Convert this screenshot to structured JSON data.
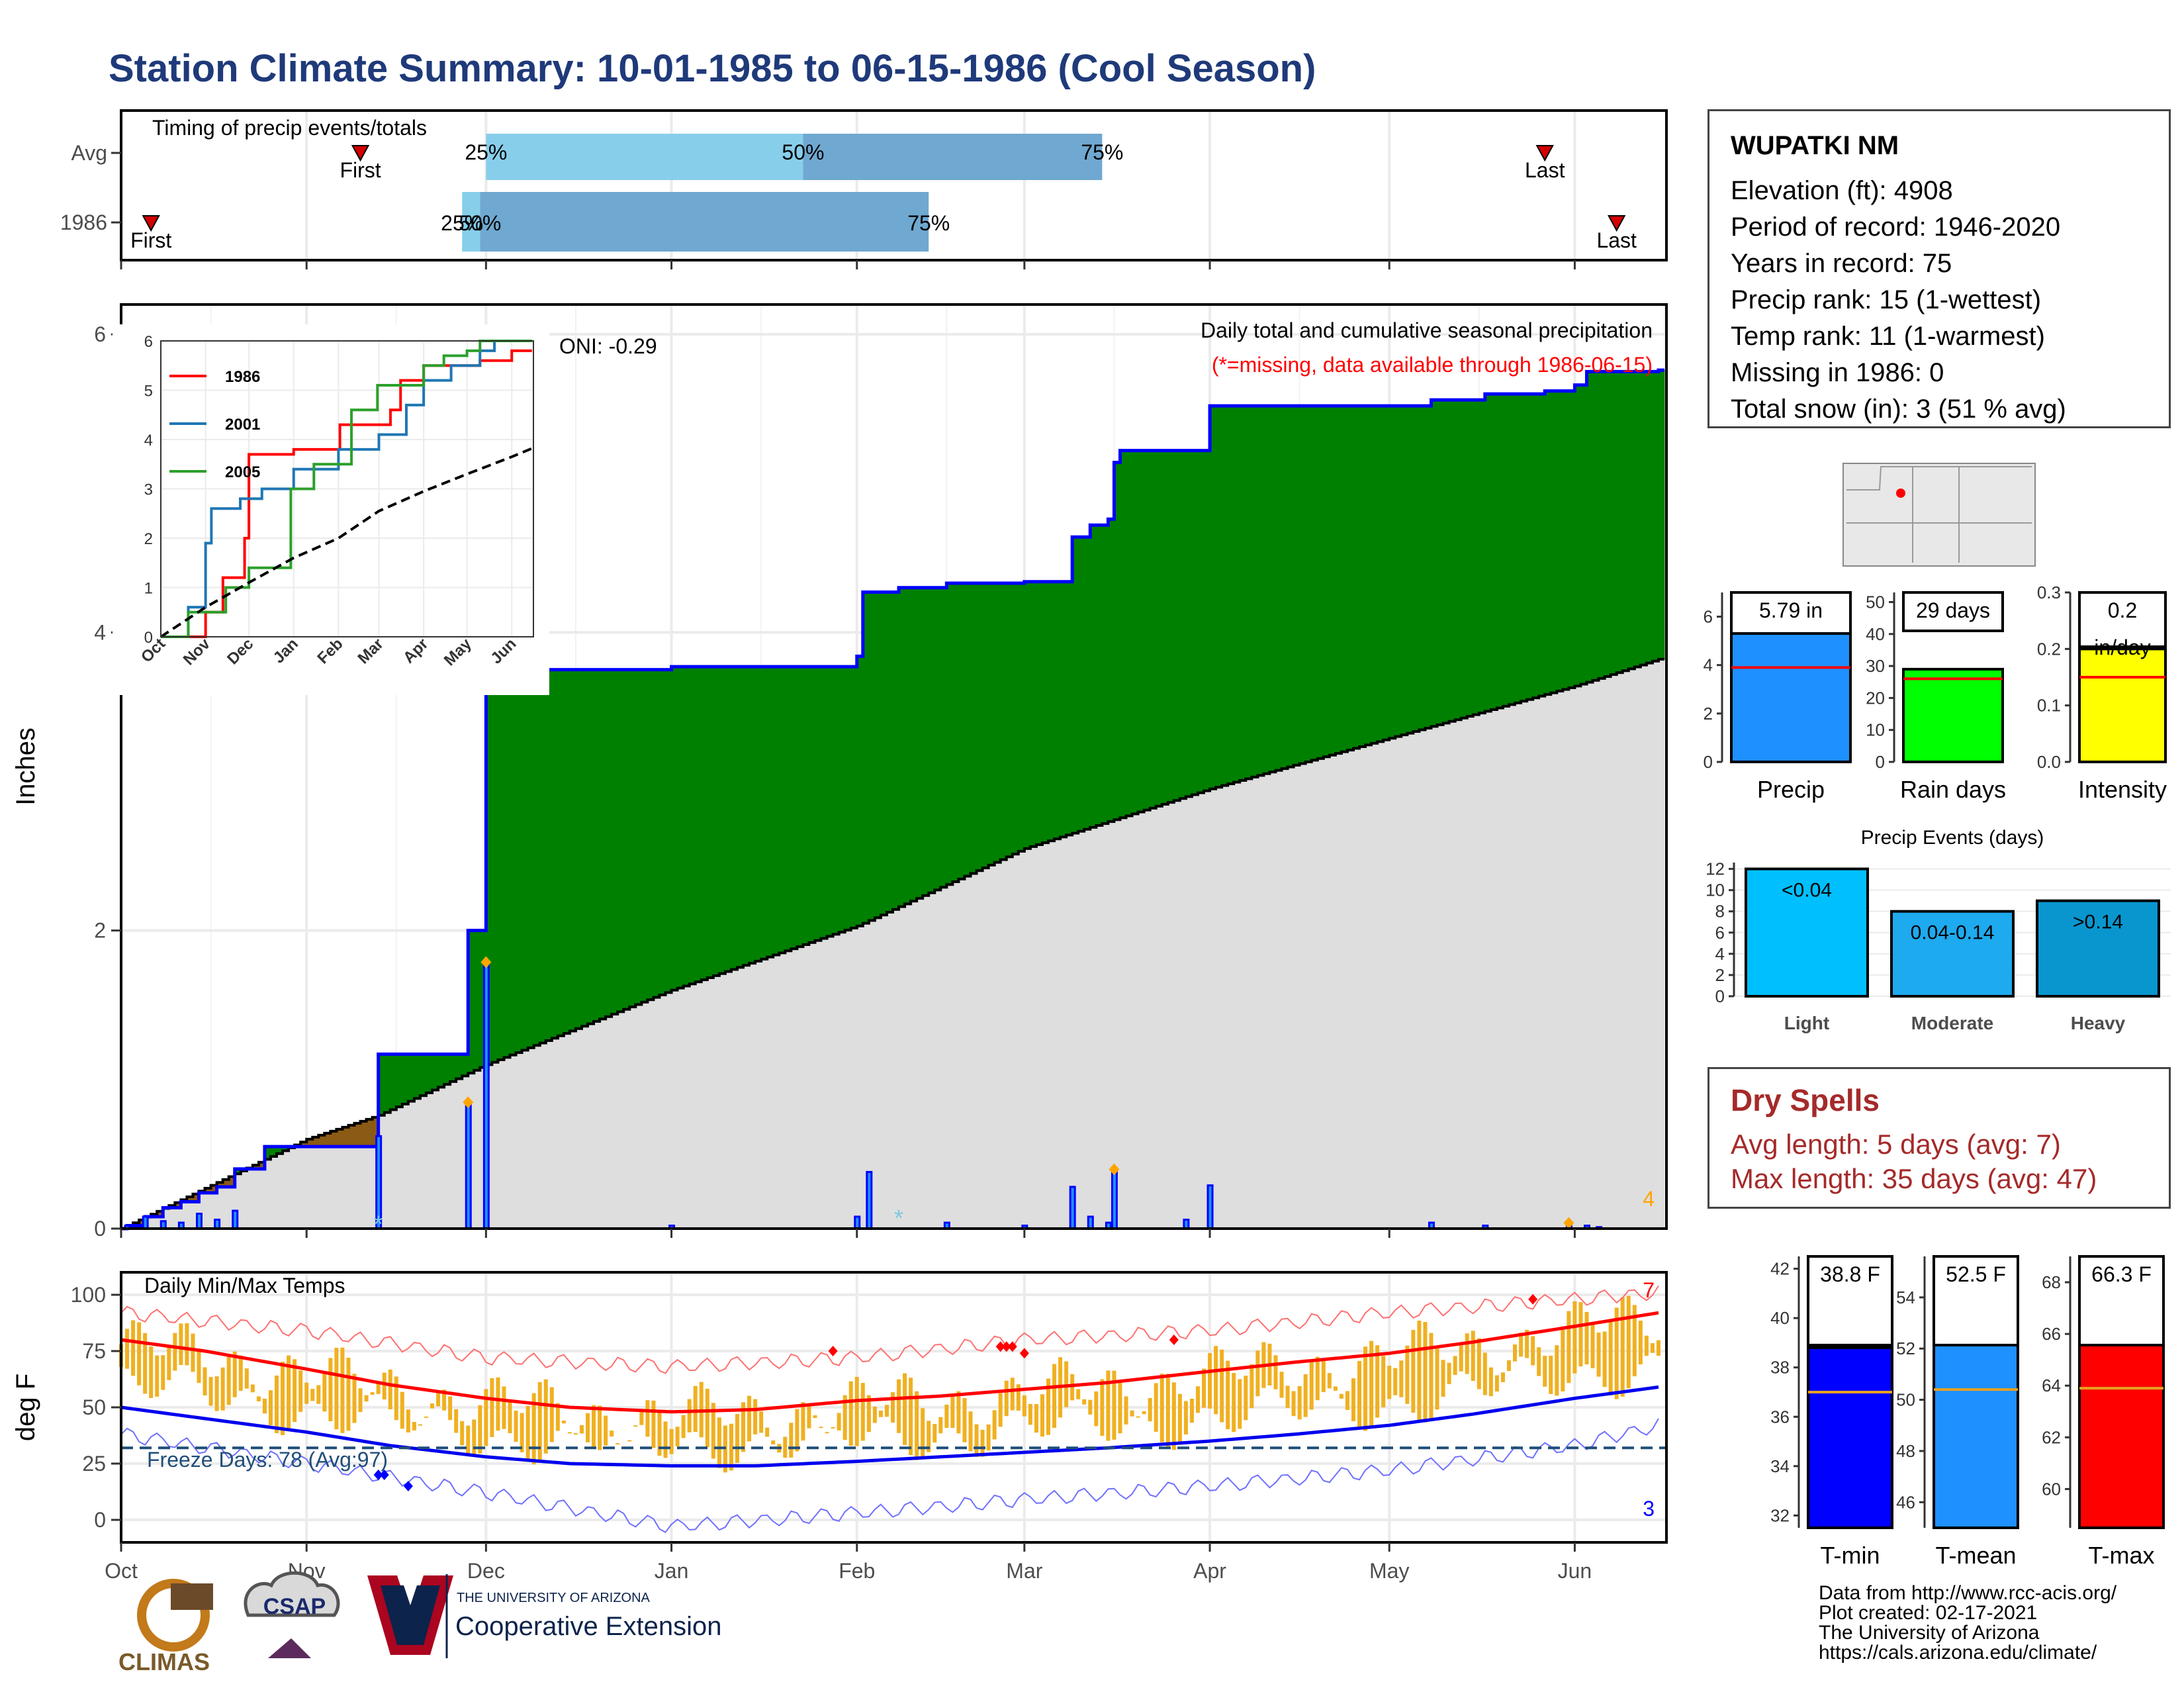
{
  "title": "Station Climate Summary: 10-01-1985 to 06-15-1986 (Cool Season)",
  "station": {
    "name": "WUPATKI NM",
    "lines": [
      "Elevation (ft): 4908",
      "Period of record: 1946-2020",
      "Years in record: 75",
      "Precip rank: 15 (1-wettest)",
      "Temp rank: 11 (1-warmest)",
      "Missing in 1986: 0",
      "Total snow (in): 3 (51 % avg)"
    ]
  },
  "dry_spells": {
    "title": "Dry Spells",
    "avg_length": "Avg length: 5 days (avg: 7)",
    "max_length": "Max length: 35 days (avg: 47)"
  },
  "credits": [
    "Data from http://www.rcc-acis.org/",
    "Plot created: 02-17-2021",
    "The University of Arizona",
    "https://cals.arizona.edu/climate/"
  ],
  "logos": {
    "climas": "CLIMAS",
    "csap": "CSAP",
    "ua_small": "THE UNIVERSITY OF ARIZONA",
    "ua_big": "Cooperative Extension"
  },
  "colors": {
    "green_surplus": "#008000",
    "brown_deficit": "#8b5a14",
    "normal_gray": "#dedede",
    "blue_line": "#0000ff",
    "bar_blue": "#1e90ff",
    "tmax_red": "#ff0000",
    "tmin_blue": "#0000ee",
    "range_orange": "#f0b021",
    "timing_light": "#87ceeb",
    "timing_dark": "#6fa8d0"
  },
  "chart_data": [
    {
      "id": "timing",
      "type": "bar",
      "title": "Timing of precip events/totals",
      "rows": [
        "Avg",
        "1986"
      ],
      "avg": {
        "first": "Nov 10",
        "p25": "Dec 1",
        "p50": "Jan 23",
        "p75": "Mar 14",
        "last": "May 27"
      },
      "y1986": {
        "first": "Oct 6",
        "p25": "Nov 27",
        "p50": "Nov 30",
        "p75": "Feb 13",
        "last": "Jun 8"
      },
      "labels": {
        "first": "First",
        "last": "Last",
        "p25": "25%",
        "p50": "50%",
        "p75": "75%"
      }
    },
    {
      "id": "precip",
      "type": "area",
      "title": "Daily total and cumulative seasonal precipitation",
      "note": "(*=missing, data available through 1986-06-15)",
      "oni": "ONI: -0.29",
      "ylabel": "Inches",
      "ylim": [
        0,
        6.2
      ],
      "yticks": [
        0,
        2,
        4,
        6
      ],
      "corner_count": "4",
      "cumulative_1986": [
        [
          "Oct 1",
          0.0
        ],
        [
          "Oct 2",
          0.02
        ],
        [
          "Oct 5",
          0.08
        ],
        [
          "Oct 8",
          0.14
        ],
        [
          "Oct 11",
          0.18
        ],
        [
          "Oct 14",
          0.24
        ],
        [
          "Oct 17",
          0.28
        ],
        [
          "Oct 20",
          0.4
        ],
        [
          "Oct 25",
          0.55
        ],
        [
          "Nov 12",
          0.55
        ],
        [
          "Nov 13",
          1.17
        ],
        [
          "Nov 27",
          1.17
        ],
        [
          "Nov 28",
          2.0
        ],
        [
          "Nov 30",
          2.0
        ],
        [
          "Dec 1",
          3.63
        ],
        [
          "Dec 4",
          3.63
        ],
        [
          "Dec 5",
          3.75
        ],
        [
          "Dec 31",
          3.75
        ],
        [
          "Jan 1",
          3.77
        ],
        [
          "Jan 31",
          3.77
        ],
        [
          "Feb 1",
          3.84
        ],
        [
          "Feb 2",
          4.27
        ],
        [
          "Feb 8",
          4.3
        ],
        [
          "Feb 16",
          4.33
        ],
        [
          "Feb 28",
          4.33
        ],
        [
          "Mar 1",
          4.34
        ],
        [
          "Mar 8",
          4.34
        ],
        [
          "Mar 9",
          4.64
        ],
        [
          "Mar 12",
          4.72
        ],
        [
          "Mar 15",
          4.76
        ],
        [
          "Mar 16",
          5.14
        ],
        [
          "Mar 17",
          5.22
        ],
        [
          "Mar 31",
          5.22
        ],
        [
          "Apr 1",
          5.52
        ],
        [
          "May 7",
          5.52
        ],
        [
          "May 8",
          5.56
        ],
        [
          "May 17",
          5.6
        ],
        [
          "May 27",
          5.62
        ],
        [
          "Jun 1",
          5.66
        ],
        [
          "Jun 3",
          5.75
        ],
        [
          "Jun 15",
          5.76
        ]
      ],
      "normal_cumulative": [
        [
          "Oct 1",
          0.0
        ],
        [
          "Nov 1",
          0.6
        ],
        [
          "Nov 13",
          0.76
        ],
        [
          "Dec 1",
          1.1
        ],
        [
          "Jan 1",
          1.6
        ],
        [
          "Feb 1",
          2.03
        ],
        [
          "Mar 1",
          2.55
        ],
        [
          "Apr 1",
          2.95
        ],
        [
          "May 1",
          3.29
        ],
        [
          "Jun 1",
          3.64
        ],
        [
          "Jun 15",
          3.82
        ]
      ],
      "daily": [
        [
          "Oct 2",
          0.02
        ],
        [
          "Oct 5",
          0.08
        ],
        [
          "Oct 8",
          0.05
        ],
        [
          "Oct 11",
          0.04
        ],
        [
          "Oct 14",
          0.1
        ],
        [
          "Oct 17",
          0.06
        ],
        [
          "Oct 20",
          0.12
        ],
        [
          "Nov 13",
          0.62
        ],
        [
          "Nov 28",
          0.83
        ],
        [
          "Dec 1",
          1.77
        ],
        [
          "Jan 1",
          0.02
        ],
        [
          "Feb 1",
          0.08
        ],
        [
          "Feb 3",
          0.38
        ],
        [
          "Feb 16",
          0.04
        ],
        [
          "Mar 1",
          0.02
        ],
        [
          "Mar 9",
          0.28
        ],
        [
          "Mar 12",
          0.08
        ],
        [
          "Mar 15",
          0.04
        ],
        [
          "Mar 16",
          0.38
        ],
        [
          "Mar 28",
          0.06
        ],
        [
          "Apr 1",
          0.29
        ],
        [
          "May 8",
          0.04
        ],
        [
          "May 17",
          0.02
        ],
        [
          "May 31",
          0.02
        ],
        [
          "Jun 3",
          0.02
        ],
        [
          "Jun 5",
          0.01
        ]
      ]
    },
    {
      "id": "inset",
      "type": "line",
      "series": [
        {
          "name": "1986",
          "color": "#ff0000",
          "points": [
            [
              "Oct 1",
              0
            ],
            [
              "Nov 1",
              0.5
            ],
            [
              "Nov 13",
              1.2
            ],
            [
              "Nov 28",
              2.0
            ],
            [
              "Dec 1",
              3.7
            ],
            [
              "Jan 1",
              3.8
            ],
            [
              "Feb 2",
              4.3
            ],
            [
              "Mar 9",
              4.6
            ],
            [
              "Mar 16",
              5.2
            ],
            [
              "Apr 1",
              5.5
            ],
            [
              "May 10",
              5.6
            ],
            [
              "Jun 1",
              5.8
            ],
            [
              "Jun 15",
              5.8
            ]
          ]
        },
        {
          "name": "2001",
          "color": "#1f77b4",
          "points": [
            [
              "Oct 1",
              0
            ],
            [
              "Oct 20",
              0.6
            ],
            [
              "Nov 1",
              1.9
            ],
            [
              "Nov 5",
              2.6
            ],
            [
              "Nov 25",
              2.8
            ],
            [
              "Dec 10",
              3.0
            ],
            [
              "Jan 1",
              3.4
            ],
            [
              "Feb 1",
              3.8
            ],
            [
              "Mar 1",
              4.1
            ],
            [
              "Mar 20",
              4.7
            ],
            [
              "Apr 1",
              5.2
            ],
            [
              "Apr 20",
              5.5
            ],
            [
              "May 10",
              5.8
            ],
            [
              "May 20",
              6.0
            ],
            [
              "Jun 15",
              6.0
            ]
          ]
        },
        {
          "name": "2005",
          "color": "#2ca02c",
          "points": [
            [
              "Oct 1",
              0
            ],
            [
              "Oct 20",
              0.5
            ],
            [
              "Nov 15",
              1.0
            ],
            [
              "Dec 1",
              1.4
            ],
            [
              "Dec 30",
              3.0
            ],
            [
              "Jan 15",
              3.5
            ],
            [
              "Feb 10",
              4.6
            ],
            [
              "Feb 28",
              5.1
            ],
            [
              "Mar 10",
              5.1
            ],
            [
              "Apr 1",
              5.5
            ],
            [
              "Apr 15",
              5.7
            ],
            [
              "May 1",
              5.8
            ],
            [
              "May 10",
              6.0
            ],
            [
              "Jun 15",
              6.0
            ]
          ]
        },
        {
          "name": "normal",
          "color": "#000000",
          "points": [
            [
              "Oct 1",
              0
            ],
            [
              "Nov 1",
              0.6
            ],
            [
              "Dec 1",
              1.1
            ],
            [
              "Jan 1",
              1.6
            ],
            [
              "Feb 1",
              2.0
            ],
            [
              "Mar 1",
              2.55
            ],
            [
              "Apr 1",
              2.95
            ],
            [
              "May 1",
              3.3
            ],
            [
              "Jun 1",
              3.65
            ],
            [
              "Jun 15",
              3.82
            ]
          ]
        }
      ],
      "xticks": [
        "Oct",
        "Nov",
        "Dec",
        "Jan",
        "Feb",
        "Mar",
        "Apr",
        "May",
        "Jun"
      ],
      "yticks": [
        0,
        1,
        2,
        3,
        4,
        5,
        6
      ],
      "ylim": [
        0,
        6
      ]
    },
    {
      "id": "temps",
      "type": "line",
      "title": "Daily Min/Max Temps",
      "ylabel": "deg F",
      "ylim": [
        -10,
        110
      ],
      "yticks": [
        0,
        25,
        50,
        75,
        100
      ],
      "freeze_line": 32,
      "freeze_text": "Freeze Days: 78 (Avg:97)",
      "record_high_count": "7",
      "record_low_count": "3",
      "normal_max": [
        [
          "Oct 1",
          80
        ],
        [
          "Oct 15",
          75
        ],
        [
          "Nov 1",
          67
        ],
        [
          "Nov 15",
          60
        ],
        [
          "Dec 1",
          54
        ],
        [
          "Dec 15",
          50
        ],
        [
          "Jan 1",
          48
        ],
        [
          "Jan 15",
          49
        ],
        [
          "Feb 1",
          53
        ],
        [
          "Feb 15",
          55
        ],
        [
          "Mar 1",
          58
        ],
        [
          "Mar 15",
          61
        ],
        [
          "Apr 1",
          66
        ],
        [
          "Apr 15",
          70
        ],
        [
          "May 1",
          74
        ],
        [
          "May 15",
          79
        ],
        [
          "Jun 1",
          86
        ],
        [
          "Jun 15",
          92
        ]
      ],
      "normal_min": [
        [
          "Oct 1",
          50
        ],
        [
          "Oct 15",
          45
        ],
        [
          "Nov 1",
          39
        ],
        [
          "Nov 15",
          33
        ],
        [
          "Dec 1",
          28
        ],
        [
          "Dec 15",
          25
        ],
        [
          "Jan 1",
          24
        ],
        [
          "Jan 15",
          24
        ],
        [
          "Feb 1",
          26
        ],
        [
          "Feb 15",
          28
        ],
        [
          "Mar 1",
          30
        ],
        [
          "Mar 15",
          32
        ],
        [
          "Apr 1",
          35
        ],
        [
          "Apr 15",
          38
        ],
        [
          "May 1",
          42
        ],
        [
          "May 15",
          47
        ],
        [
          "Jun 1",
          54
        ],
        [
          "Jun 15",
          59
        ]
      ],
      "record_max": [
        [
          "Oct 1",
          92
        ],
        [
          "Nov 1",
          84
        ],
        [
          "Dec 1",
          72
        ],
        [
          "Jan 1",
          68
        ],
        [
          "Feb 1",
          72
        ],
        [
          "Mar 1",
          80
        ],
        [
          "Apr 1",
          84
        ],
        [
          "May 1",
          92
        ],
        [
          "Jun 1",
          98
        ],
        [
          "Jun 15",
          101
        ]
      ],
      "record_min": [
        [
          "Oct 1",
          38
        ],
        [
          "Nov 1",
          25
        ],
        [
          "Dec 1",
          12
        ],
        [
          "Jan 1",
          -3
        ],
        [
          "Feb 1",
          3
        ],
        [
          "Mar 1",
          9
        ],
        [
          "Apr 1",
          15
        ],
        [
          "May 1",
          22
        ],
        [
          "Jun 1",
          33
        ],
        [
          "Jun 15",
          42
        ]
      ],
      "xticks": [
        "Oct",
        "Nov",
        "Dec",
        "Jan",
        "Feb",
        "Mar",
        "Apr",
        "May",
        "Jun"
      ]
    },
    {
      "id": "sum_precip",
      "type": "bar",
      "value": 5.79,
      "value_label": "5.79 in",
      "avg": 3.9,
      "ylim": [
        0,
        7.0
      ],
      "yticks": [
        0,
        2,
        4,
        6
      ],
      "xlabel": "Precip",
      "color": "#1e90ff"
    },
    {
      "id": "sum_raindays",
      "type": "bar",
      "value": 29,
      "value_label": "29 days",
      "avg": 26,
      "ylim": [
        0,
        53
      ],
      "yticks": [
        0,
        10,
        20,
        30,
        40,
        50
      ],
      "xlabel": "Rain days",
      "color": "#00ff00"
    },
    {
      "id": "sum_intensity",
      "type": "bar",
      "value": 0.2,
      "value_label": "0.2",
      "value_unit": "in/day",
      "avg": 0.15,
      "ylim": [
        0,
        0.3
      ],
      "yticks": [
        "0.0",
        "0.1",
        "0.2",
        "0.3"
      ],
      "xlabel": "Intensity",
      "color": "#ffff00"
    },
    {
      "id": "events",
      "type": "bar",
      "title": "Precip Events (days)",
      "categories": [
        "Light",
        "Moderate",
        "Heavy"
      ],
      "values": [
        12,
        8,
        9
      ],
      "labels": [
        "<0.04",
        "0.04-0.14",
        ">0.14"
      ],
      "colors": [
        "#00bfff",
        "#1eaaee",
        "#0996cf"
      ],
      "ylim": [
        0,
        12.6
      ],
      "yticks": [
        0,
        2,
        4,
        6,
        8,
        10,
        12
      ]
    },
    {
      "id": "tmin",
      "type": "bar",
      "value": 38.8,
      "value_label": "38.8 F",
      "avg": 37.0,
      "ylim": [
        31.5,
        42.5
      ],
      "yticks": [
        32,
        34,
        36,
        38,
        40,
        42
      ],
      "xlabel": "T-min",
      "color": "#0000ff"
    },
    {
      "id": "tmean",
      "type": "bar",
      "value": 52.5,
      "value_label": "52.5 F",
      "avg": 50.4,
      "ylim": [
        45.0,
        55.6
      ],
      "yticks": [
        46,
        48,
        50,
        52,
        54
      ],
      "xlabel": "T-mean",
      "color": "#1e90ff"
    },
    {
      "id": "tmax",
      "type": "bar",
      "value": 66.3,
      "value_label": "66.3 F",
      "avg": 63.9,
      "ylim": [
        58.5,
        69.0
      ],
      "yticks": [
        60,
        62,
        64,
        66,
        68
      ],
      "xlabel": "T-max",
      "color": "#ff0000"
    }
  ]
}
